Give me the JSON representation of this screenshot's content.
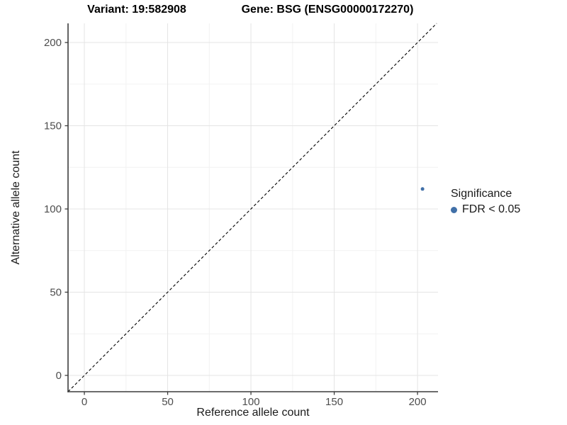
{
  "chart_data": {
    "type": "scatter",
    "title_left": "Variant: 19:582908",
    "title_right": "Gene: BSG (ENSG00000172270)",
    "xlabel": "Reference allele count",
    "ylabel": "Alternative allele count",
    "xlim": [
      -9.8,
      212.3
    ],
    "ylim": [
      -9.8,
      211.5
    ],
    "x_ticks": [
      0,
      50,
      100,
      150,
      200
    ],
    "y_ticks": [
      0,
      50,
      100,
      150,
      200
    ],
    "x_minor_ticks": [
      25,
      75,
      125,
      175
    ],
    "y_minor_ticks": [
      25,
      75,
      125,
      175
    ],
    "grid": "major+minor",
    "points": [
      {
        "x": 203,
        "y": 112,
        "series": "FDR < 0.05",
        "color": "#4170a8",
        "radius": 2.5
      }
    ],
    "reference_line": {
      "type": "identity",
      "slope": 1,
      "intercept": 0,
      "style": "dashed",
      "color": "#000000"
    },
    "legend": {
      "title": "Significance",
      "position": "right",
      "items": [
        {
          "label": "FDR < 0.05",
          "color": "#4170a8",
          "marker_radius": 4.5
        }
      ]
    },
    "colors": {
      "major_grid": "#e4e4e4",
      "minor_grid": "#f2f2f2",
      "axis_line": "#3c3c3c",
      "tick_label": "#4d4d4d"
    }
  }
}
